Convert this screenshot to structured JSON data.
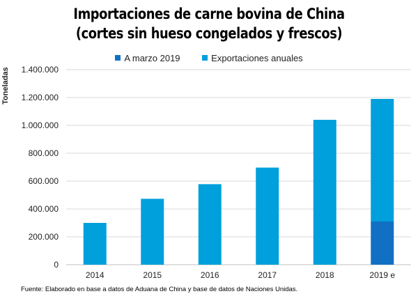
{
  "chart_data": {
    "type": "bar",
    "stacked": true,
    "title": "Importaciones de carne bovina de China",
    "subtitle": "(cortes sin hueso congelados y frescos)",
    "xlabel": "",
    "ylabel": "Toneladas",
    "ylim": [
      0,
      1400000
    ],
    "yticks": [
      "0",
      "200.000",
      "400.000",
      "600.000",
      "800.000",
      "1.000.000",
      "1.200.000",
      "1.400.000"
    ],
    "ytick_values": [
      0,
      200000,
      400000,
      600000,
      800000,
      1000000,
      1200000,
      1400000
    ],
    "grid": true,
    "legend_position": "top",
    "categories": [
      "2014",
      "2015",
      "2016",
      "2017",
      "2018",
      "2019 e"
    ],
    "series": [
      {
        "name": "A marzo 2019",
        "color": "#1170c4",
        "values": [
          0,
          0,
          0,
          0,
          0,
          310000
        ]
      },
      {
        "name": "Exportaciones anuales",
        "color": "#00a0dc",
        "values": [
          300000,
          473000,
          578000,
          697000,
          1040000,
          880000
        ]
      }
    ],
    "source": "Fuente: Elaborado en base a datos de Aduana de China y base de datos de Naciones Unidas."
  }
}
